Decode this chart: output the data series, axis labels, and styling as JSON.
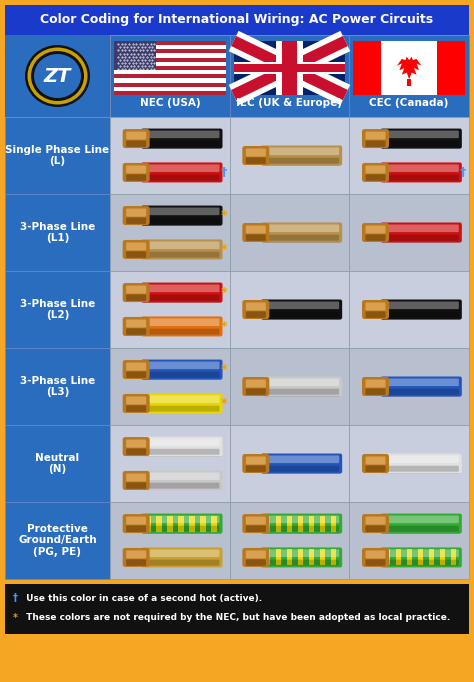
{
  "title": "Color Coding for International Wiring: AC Power Circuits",
  "outer_border_color": "#F5A623",
  "title_bg": "#1a3acc",
  "col_headers": [
    "NEC (USA)",
    "IEC (UK & Europe)",
    "CEC (Canada)"
  ],
  "row_labels": [
    "Single Phase Line\n(L)",
    "3-Phase Line\n(L1)",
    "3-Phase Line\n(L2)",
    "3-Phase Line\n(L3)",
    "Neutral\n(N)",
    "Protective\nGround/Earth\n(PG, PE)"
  ],
  "label_bg": "#2a6dbf",
  "header_bg": "#2a6dbf",
  "row_bg_even": "#c8cedd",
  "row_bg_odd": "#b8c0d0",
  "footer_bg": "#111111",
  "footer_lines": [
    [
      "†",
      " Use this color in case of a second hot (active).",
      "#4499ff"
    ],
    [
      "*",
      " These colors are not required by the NEC, but have been adopted as local practice.",
      "#e8a000"
    ]
  ],
  "wire_rows": [
    {
      "nec": [
        {
          "c": "#111111",
          "s": false,
          "sc": null
        },
        {
          "c": "#cc1111",
          "s": false,
          "sc": null,
          "sym": "†",
          "sym_col": "#4499ff"
        }
      ],
      "iec": [
        {
          "c": "#b8904a",
          "s": false,
          "sc": null
        }
      ],
      "cec": [
        {
          "c": "#111111",
          "s": false,
          "sc": null
        },
        {
          "c": "#cc1111",
          "s": false,
          "sc": null,
          "sym": "†",
          "sym_col": "#4499ff"
        }
      ]
    },
    {
      "nec": [
        {
          "c": "#111111",
          "s": false,
          "sc": null,
          "sym": "*",
          "sym_col": "#e8a000"
        },
        {
          "c": "#b8904a",
          "s": false,
          "sc": null,
          "sym": "*",
          "sym_col": "#e8a000"
        }
      ],
      "iec": [
        {
          "c": "#b8904a",
          "s": false,
          "sc": null
        }
      ],
      "cec": [
        {
          "c": "#cc1111",
          "s": false,
          "sc": null
        }
      ]
    },
    {
      "nec": [
        {
          "c": "#cc1111",
          "s": false,
          "sc": null,
          "sym": "*",
          "sym_col": "#e8a000"
        },
        {
          "c": "#e07010",
          "s": false,
          "sc": null,
          "sym": "*",
          "sym_col": "#e8a000"
        }
      ],
      "iec": [
        {
          "c": "#111111",
          "s": false,
          "sc": null
        }
      ],
      "cec": [
        {
          "c": "#111111",
          "s": false,
          "sc": null
        }
      ]
    },
    {
      "nec": [
        {
          "c": "#2255bb",
          "s": false,
          "sc": null,
          "sym": "*",
          "sym_col": "#e8a000"
        },
        {
          "c": "#e8d800",
          "s": false,
          "sc": null,
          "sym": "*",
          "sym_col": "#e8a000"
        }
      ],
      "iec": [
        {
          "c": "#c8c8c8",
          "s": false,
          "sc": null
        }
      ],
      "cec": [
        {
          "c": "#2255bb",
          "s": false,
          "sc": null
        }
      ]
    },
    {
      "nec": [
        {
          "c": "#e0e0e0",
          "s": false,
          "sc": null
        },
        {
          "c": "#c8c8c8",
          "s": false,
          "sc": null
        }
      ],
      "iec": [
        {
          "c": "#2255bb",
          "s": false,
          "sc": null
        }
      ],
      "cec": [
        {
          "c": "#e0e0e0",
          "s": false,
          "sc": null
        }
      ]
    },
    {
      "nec": [
        {
          "c": "#33aa33",
          "s": true,
          "sc": "#e8d800"
        },
        {
          "c": "#c8a030",
          "s": false,
          "sc": null
        }
      ],
      "iec": [
        {
          "c": "#33aa33",
          "s": true,
          "sc": "#e8d800"
        },
        {
          "c": "#33aa33",
          "s": true,
          "sc": "#e8d800"
        }
      ],
      "cec": [
        {
          "c": "#33aa33",
          "s": false,
          "sc": null
        },
        {
          "c": "#33aa33",
          "s": true,
          "sc": "#e8d800"
        }
      ]
    }
  ]
}
